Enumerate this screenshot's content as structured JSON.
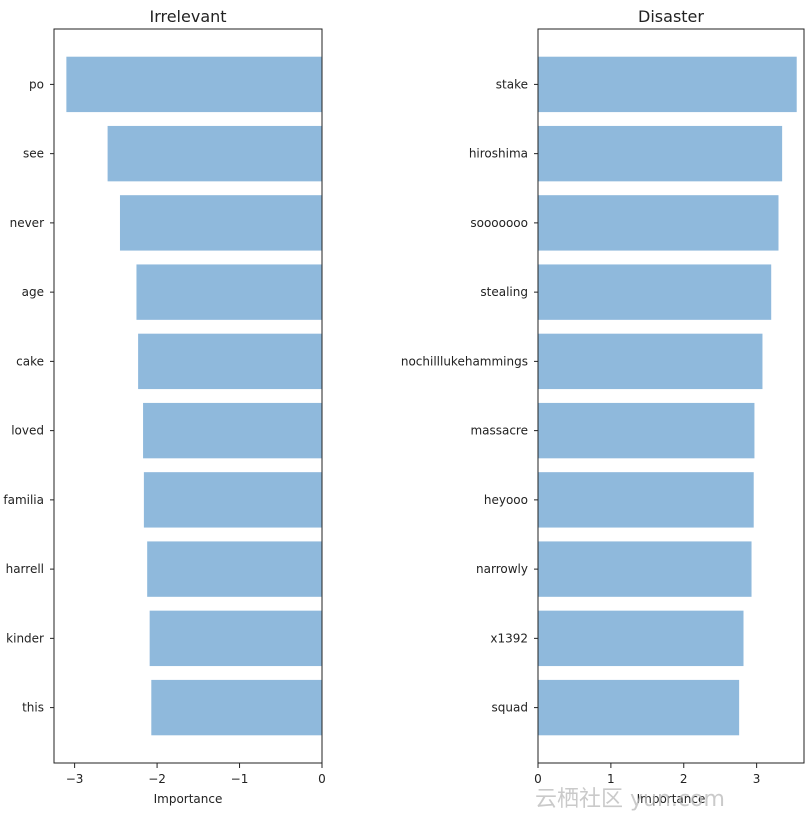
{
  "chart_data": [
    {
      "type": "bar",
      "orientation": "horizontal",
      "title": "Irrelevant",
      "xlabel": "Importance",
      "categories": [
        "po",
        "see",
        "never",
        "age",
        "cake",
        "loved",
        "familia",
        "harrell",
        "kinder",
        "this"
      ],
      "values": [
        -3.1,
        -2.6,
        -2.45,
        -2.25,
        -2.23,
        -2.17,
        -2.16,
        -2.12,
        -2.09,
        -2.07
      ],
      "xlim": [
        -3.25,
        0
      ],
      "xticks": [
        -3,
        -2,
        -1,
        0
      ],
      "xtick_labels": [
        "−3",
        "−2",
        "−1",
        "0"
      ],
      "grid": false,
      "bar_color": "#8fb9dc"
    },
    {
      "type": "bar",
      "orientation": "horizontal",
      "title": "Disaster",
      "xlabel": "Importance",
      "categories": [
        "stake",
        "hiroshima",
        "sooooooo",
        "stealing",
        "nochilllukehammings",
        "massacre",
        "heyooo",
        "narrowly",
        "x1392",
        "squad"
      ],
      "values": [
        3.55,
        3.35,
        3.3,
        3.2,
        3.08,
        2.97,
        2.96,
        2.93,
        2.82,
        2.76
      ],
      "xlim": [
        0,
        3.65
      ],
      "xticks": [
        0,
        1,
        2,
        3
      ],
      "xtick_labels": [
        "0",
        "1",
        "2",
        "3"
      ],
      "grid": false,
      "bar_color": "#8fb9dc"
    }
  ],
  "watermark": "云栖社区 yun.com"
}
